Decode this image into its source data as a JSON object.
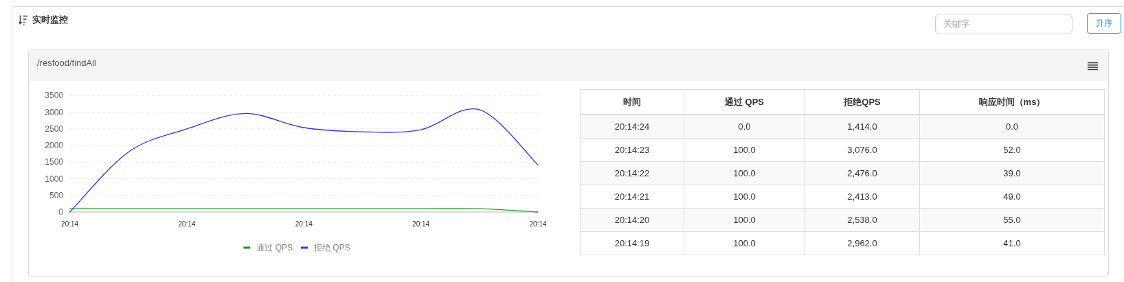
{
  "chart_data": [
    {
      "type": "other",
      "title": "实时监控",
      "annotations": [
        "关键字",
        "升序"
      ]
    },
    {
      "type": "line",
      "title": "/resfood/findAll",
      "categories": [
        "20:14",
        null,
        "20:14",
        null,
        "20:14",
        null,
        "20:14",
        null,
        "20:14"
      ],
      "series": [
        {
          "name": "通过 QPS",
          "color": "#1e9b1e",
          "values": [
            100,
            100,
            100,
            100,
            100,
            100,
            100,
            100,
            0
          ]
        },
        {
          "name": "拒绝 QPS",
          "color": "#3030ff",
          "values": [
            0,
            1800,
            2500,
            2962,
            2538,
            2413,
            2476,
            3076,
            1414
          ]
        }
      ],
      "ylim": [
        0,
        3500
      ],
      "yticks": [
        0,
        500,
        1000,
        1500,
        2000,
        2500,
        3000,
        3500
      ],
      "grid": "y",
      "legend": "bottom"
    },
    {
      "type": "heatmap",
      "ylabel": "时间",
      "categories": [
        "通过 QPS",
        "拒绝QPS",
        "响应时间（ms）"
      ],
      "y_categories": [
        "20:14:24",
        "20:14:23",
        "20:14:22",
        "20:14:21",
        "20:14:20",
        "20:14:19"
      ],
      "cells": [
        [
          0,
          1414,
          0
        ],
        [
          100,
          3076,
          52
        ],
        [
          100,
          2476,
          39
        ],
        [
          100,
          2413,
          49
        ],
        [
          100,
          2538,
          55
        ],
        [
          100,
          2962,
          41
        ]
      ],
      "cell_labels": [
        [
          "0.0",
          "1,414.0",
          "0.0"
        ],
        [
          "100.0",
          "3,076.0",
          "52.0"
        ],
        [
          "100.0",
          "2,476.0",
          "39.0"
        ],
        [
          "100.0",
          "2,413.0",
          "49.0"
        ],
        [
          "100.0",
          "2,538.0",
          "55.0"
        ],
        [
          "100.0",
          "2,962.0",
          "41.0"
        ]
      ]
    }
  ]
}
